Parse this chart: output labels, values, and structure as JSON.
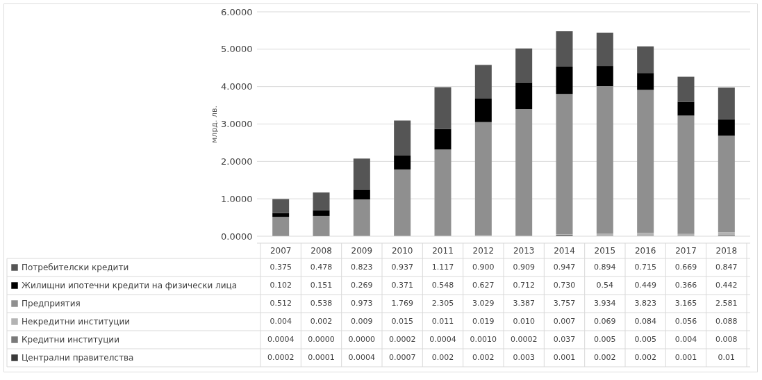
{
  "chart_data": {
    "type": "bar",
    "stacked": true,
    "ylabel": "млрд. лв.",
    "categories": [
      "2007",
      "2008",
      "2009",
      "2010",
      "2011",
      "2012",
      "2013",
      "2014",
      "2015",
      "2016",
      "2017",
      "2018"
    ],
    "ylim": [
      0,
      6
    ],
    "yticks": [
      {
        "value": 0,
        "label": "0.0000"
      },
      {
        "value": 1,
        "label": "1.0000"
      },
      {
        "value": 2,
        "label": "2.0000"
      },
      {
        "value": 3,
        "label": "3.0000"
      },
      {
        "value": 4,
        "label": "4.0000"
      },
      {
        "value": 5,
        "label": "5.0000"
      },
      {
        "value": 6,
        "label": "6.0000"
      }
    ],
    "grid": "y",
    "legend": "bottom",
    "series": [
      {
        "name": "Централни правителства",
        "color": "#3a3a3a",
        "values": [
          0.0002,
          0.0001,
          0.0004,
          0.0007,
          0.002,
          0.002,
          0.003,
          0.001,
          0.002,
          0.002,
          0.001,
          0.01
        ],
        "value_labels": [
          "0.0002",
          "0.0001",
          "0.0004",
          "0.0007",
          "0.002",
          "0.002",
          "0.003",
          "0.001",
          "0.002",
          "0.002",
          "0.001",
          "0.01"
        ]
      },
      {
        "name": "Кредитни институции",
        "color": "#7a7a7a",
        "values": [
          0.0004,
          0,
          0,
          0.0002,
          0.0004,
          0.001,
          0.0002,
          0.037,
          0.005,
          0.005,
          0.004,
          0.008
        ],
        "value_labels": [
          "0.0004",
          "0.0000",
          "0.0000",
          "0.0002",
          "0.0004",
          "0.0010",
          "0.0002",
          "0.037",
          "0.005",
          "0.005",
          "0.004",
          "0.008"
        ]
      },
      {
        "name": "Некредитни институции",
        "color": "#b3b3b3",
        "values": [
          0.004,
          0.002,
          0.009,
          0.015,
          0.011,
          0.019,
          0.01,
          0.007,
          0.069,
          0.084,
          0.056,
          0.088
        ],
        "value_labels": [
          "0.004",
          "0.002",
          "0.009",
          "0.015",
          "0.011",
          "0.019",
          "0.010",
          "0.007",
          "0.069",
          "0.084",
          "0.056",
          "0.088"
        ]
      },
      {
        "name": "Предприятия",
        "color": "#8f8f8f",
        "values": [
          0.512,
          0.538,
          0.973,
          1.769,
          2.305,
          3.029,
          3.387,
          3.757,
          3.934,
          3.823,
          3.165,
          2.581
        ],
        "value_labels": [
          "0.512",
          "0.538",
          "0.973",
          "1.769",
          "2.305",
          "3.029",
          "3.387",
          "3.757",
          "3.934",
          "3.823",
          "3.165",
          "2.581"
        ]
      },
      {
        "name": "Жилищни ипотечни кредити на физически лица",
        "color": "#000000",
        "values": [
          0.102,
          0.151,
          0.269,
          0.371,
          0.548,
          0.627,
          0.712,
          0.73,
          0.54,
          0.449,
          0.366,
          0.442
        ],
        "value_labels": [
          "0.102",
          "0.151",
          "0.269",
          "0.371",
          "0.548",
          "0.627",
          "0.712",
          "0.730",
          "0.54",
          "0.449",
          "0.366",
          "0.442"
        ]
      },
      {
        "name": "Потребителски кредити",
        "color": "#555555",
        "values": [
          0.375,
          0.478,
          0.823,
          0.937,
          1.117,
          0.9,
          0.909,
          0.947,
          0.894,
          0.715,
          0.669,
          0.847
        ],
        "value_labels": [
          "0.375",
          "0.478",
          "0.823",
          "0.937",
          "1.117",
          "0.900",
          "0.909",
          "0.947",
          "0.894",
          "0.715",
          "0.669",
          "0.847"
        ]
      }
    ]
  }
}
